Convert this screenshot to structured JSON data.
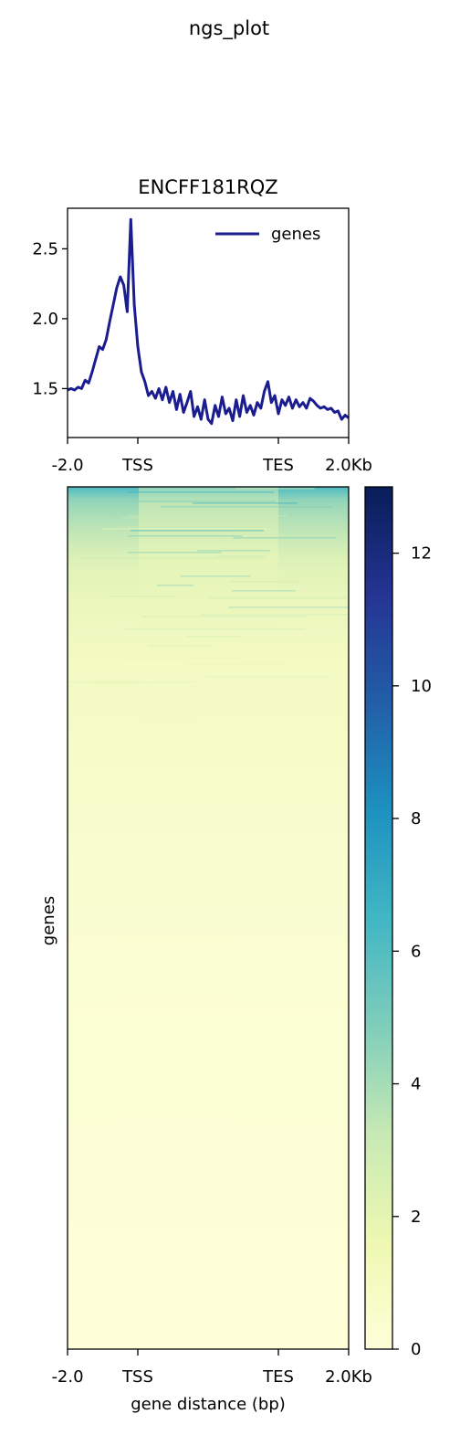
{
  "figure_title": "ngs_plot",
  "colors": {
    "line": "#1a1c8f",
    "axis": "#000000",
    "colormap": [
      "#ffffd9",
      "#edf8b1",
      "#c7e9b4",
      "#7fcdbb",
      "#41b6c4",
      "#1d91c0",
      "#225ea8",
      "#253494",
      "#081d58"
    ]
  },
  "chart_data": [
    {
      "type": "line",
      "title": "ENCFF181RQZ",
      "xlabel": "",
      "ylabel": "",
      "x_ticks": [
        "-2.0",
        "TSS",
        "TES",
        "2.0Kb"
      ],
      "x_tick_values": [
        0,
        1,
        3,
        4
      ],
      "xlim": [
        0,
        4
      ],
      "ylim": [
        1.15,
        2.79
      ],
      "y_ticks": [
        "1.5",
        "2.0",
        "2.5"
      ],
      "y_tick_values": [
        1.5,
        2.0,
        2.5
      ],
      "legend": {
        "position": "upper-right",
        "entries": [
          "genes"
        ]
      },
      "series": [
        {
          "name": "genes",
          "x": [
            0.0,
            0.05,
            0.1,
            0.15,
            0.2,
            0.25,
            0.3,
            0.35,
            0.4,
            0.45,
            0.5,
            0.55,
            0.6,
            0.65,
            0.7,
            0.75,
            0.8,
            0.85,
            0.9,
            0.95,
            1.0,
            1.05,
            1.1,
            1.15,
            1.2,
            1.25,
            1.3,
            1.35,
            1.4,
            1.45,
            1.5,
            1.55,
            1.6,
            1.65,
            1.7,
            1.75,
            1.8,
            1.85,
            1.9,
            1.95,
            2.0,
            2.05,
            2.1,
            2.15,
            2.2,
            2.25,
            2.3,
            2.35,
            2.4,
            2.45,
            2.5,
            2.55,
            2.6,
            2.65,
            2.7,
            2.75,
            2.8,
            2.85,
            2.9,
            2.95,
            3.0,
            3.05,
            3.1,
            3.15,
            3.2,
            3.25,
            3.3,
            3.35,
            3.4,
            3.45,
            3.5,
            3.55,
            3.6,
            3.65,
            3.7,
            3.75,
            3.8,
            3.85,
            3.9,
            3.95,
            4.0
          ],
          "y": [
            1.49,
            1.5,
            1.49,
            1.51,
            1.5,
            1.56,
            1.54,
            1.62,
            1.71,
            1.8,
            1.78,
            1.85,
            1.98,
            2.1,
            2.22,
            2.3,
            2.24,
            2.05,
            2.71,
            2.1,
            1.8,
            1.62,
            1.55,
            1.45,
            1.48,
            1.43,
            1.5,
            1.42,
            1.51,
            1.4,
            1.48,
            1.35,
            1.46,
            1.33,
            1.4,
            1.48,
            1.3,
            1.37,
            1.28,
            1.42,
            1.28,
            1.25,
            1.38,
            1.3,
            1.44,
            1.32,
            1.36,
            1.27,
            1.42,
            1.3,
            1.45,
            1.33,
            1.38,
            1.31,
            1.4,
            1.36,
            1.48,
            1.55,
            1.4,
            1.45,
            1.32,
            1.42,
            1.38,
            1.44,
            1.36,
            1.42,
            1.37,
            1.4,
            1.36,
            1.43,
            1.41,
            1.38,
            1.36,
            1.37,
            1.35,
            1.36,
            1.33,
            1.34,
            1.28,
            1.31,
            1.29
          ]
        }
      ]
    },
    {
      "type": "heatmap",
      "title": "",
      "xlabel": "gene distance (bp)",
      "ylabel": "genes",
      "x_ticks": [
        "-2.0",
        "TSS",
        "TES",
        "2.0Kb"
      ],
      "x_tick_values": [
        0,
        1,
        3,
        4
      ],
      "xlim": [
        0,
        4
      ],
      "colorbar": {
        "min": 0,
        "max": 13,
        "ticks": [
          0,
          2,
          4,
          6,
          8,
          10,
          12
        ]
      }
    }
  ]
}
